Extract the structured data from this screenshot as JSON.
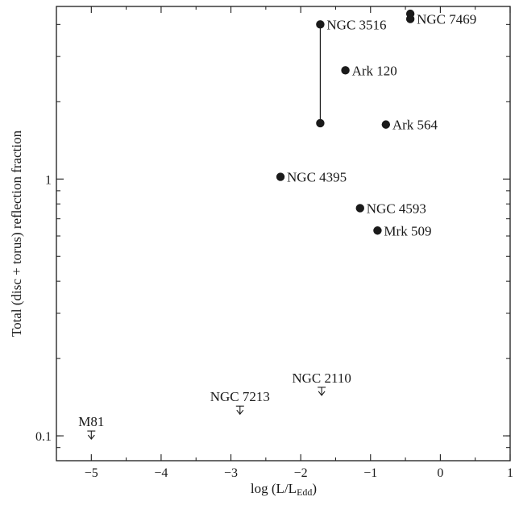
{
  "chart_data": {
    "type": "scatter",
    "title": "",
    "xlabel": "log (L/L",
    "xlabel_subscript": "Edd",
    "xlabel_suffix": ")",
    "ylabel": "Total (disc + torus) reflection fraction",
    "xlim": [
      -5.5,
      1
    ],
    "ylim": [
      0.08,
      4.7
    ],
    "yscale": "log",
    "grid": false,
    "x_ticks": [
      {
        "value": -5,
        "label": "−5"
      },
      {
        "value": -4,
        "label": "−4"
      },
      {
        "value": -3,
        "label": "−3"
      },
      {
        "value": -2,
        "label": "−2"
      },
      {
        "value": -1,
        "label": "−1"
      },
      {
        "value": 0,
        "label": "0"
      },
      {
        "value": 1,
        "label": "1"
      }
    ],
    "y_ticks": [
      {
        "value": 0.1,
        "label": "0.1"
      },
      {
        "value": 1,
        "label": "1"
      }
    ],
    "points": [
      {
        "name": "NGC 3516",
        "x": -1.72,
        "y": 4.0
      },
      {
        "name": "",
        "x": -1.72,
        "y": 1.65
      },
      {
        "name": "NGC 7469",
        "x": -0.43,
        "y": 4.2
      },
      {
        "name": "Ark 120",
        "x": -1.36,
        "y": 2.65
      },
      {
        "name": "Ark 564",
        "x": -0.78,
        "y": 1.63
      },
      {
        "name": "NGC 4395",
        "x": -2.29,
        "y": 1.02
      },
      {
        "name": "NGC 4593",
        "x": -1.15,
        "y": 0.77
      },
      {
        "name": "Mrk 509",
        "x": -0.9,
        "y": 0.63
      }
    ],
    "extra_point": {
      "x": -0.43,
      "y": 4.4
    },
    "connectors": [
      {
        "x": -1.72,
        "y1": 1.65,
        "y2": 4.0
      }
    ],
    "upper_limits": [
      {
        "name": "M81",
        "x": -5.0,
        "y": 0.1
      },
      {
        "name": "NGC 7213",
        "x": -2.87,
        "y": 0.125
      },
      {
        "name": "NGC 2110",
        "x": -1.7,
        "y": 0.148
      }
    ]
  }
}
